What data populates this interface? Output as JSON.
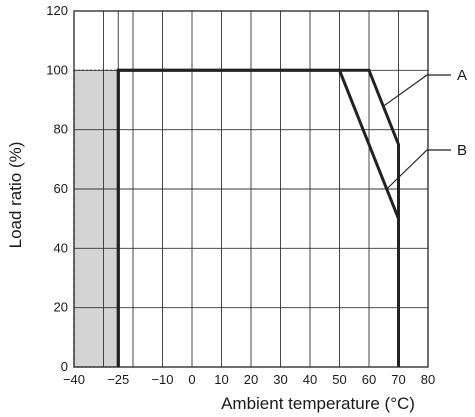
{
  "chart_data": {
    "type": "line",
    "title": "",
    "xlabel": "Ambient temperature (°C)",
    "ylabel": "Load ratio (%)",
    "xlim": [
      -40,
      80
    ],
    "ylim": [
      0,
      120
    ],
    "x_ticks": [
      -40,
      -25,
      -10,
      0,
      10,
      20,
      30,
      40,
      50,
      60,
      70,
      80
    ],
    "x_tick_labels": [
      "−40",
      "−25",
      "−10",
      "0",
      "10",
      "20",
      "30",
      "40",
      "50",
      "60",
      "70",
      "80"
    ],
    "y_ticks": [
      0,
      20,
      40,
      60,
      80,
      100,
      120
    ],
    "y_tick_labels": [
      "0",
      "20",
      "40",
      "60",
      "80",
      "100",
      "120"
    ],
    "grid": true,
    "shaded_region": {
      "x": [
        -40,
        -25
      ],
      "y": [
        0,
        100
      ],
      "color": "#d4d4d4"
    },
    "series": [
      {
        "name": "A",
        "points": [
          [
            -25,
            0
          ],
          [
            -25,
            100
          ],
          [
            60,
            100
          ],
          [
            70,
            75
          ],
          [
            70,
            0
          ]
        ]
      },
      {
        "name": "B",
        "points": [
          [
            -25,
            0
          ],
          [
            -25,
            100
          ],
          [
            50,
            100
          ],
          [
            70,
            50
          ],
          [
            70,
            0
          ]
        ]
      }
    ],
    "annotations": [
      {
        "label": "A",
        "target": [
          65,
          88
        ]
      },
      {
        "label": "B",
        "target": [
          66,
          60
        ]
      }
    ],
    "colors": {
      "line": "#222222",
      "grid": "#333333",
      "shade": "#d4d4d4"
    }
  }
}
